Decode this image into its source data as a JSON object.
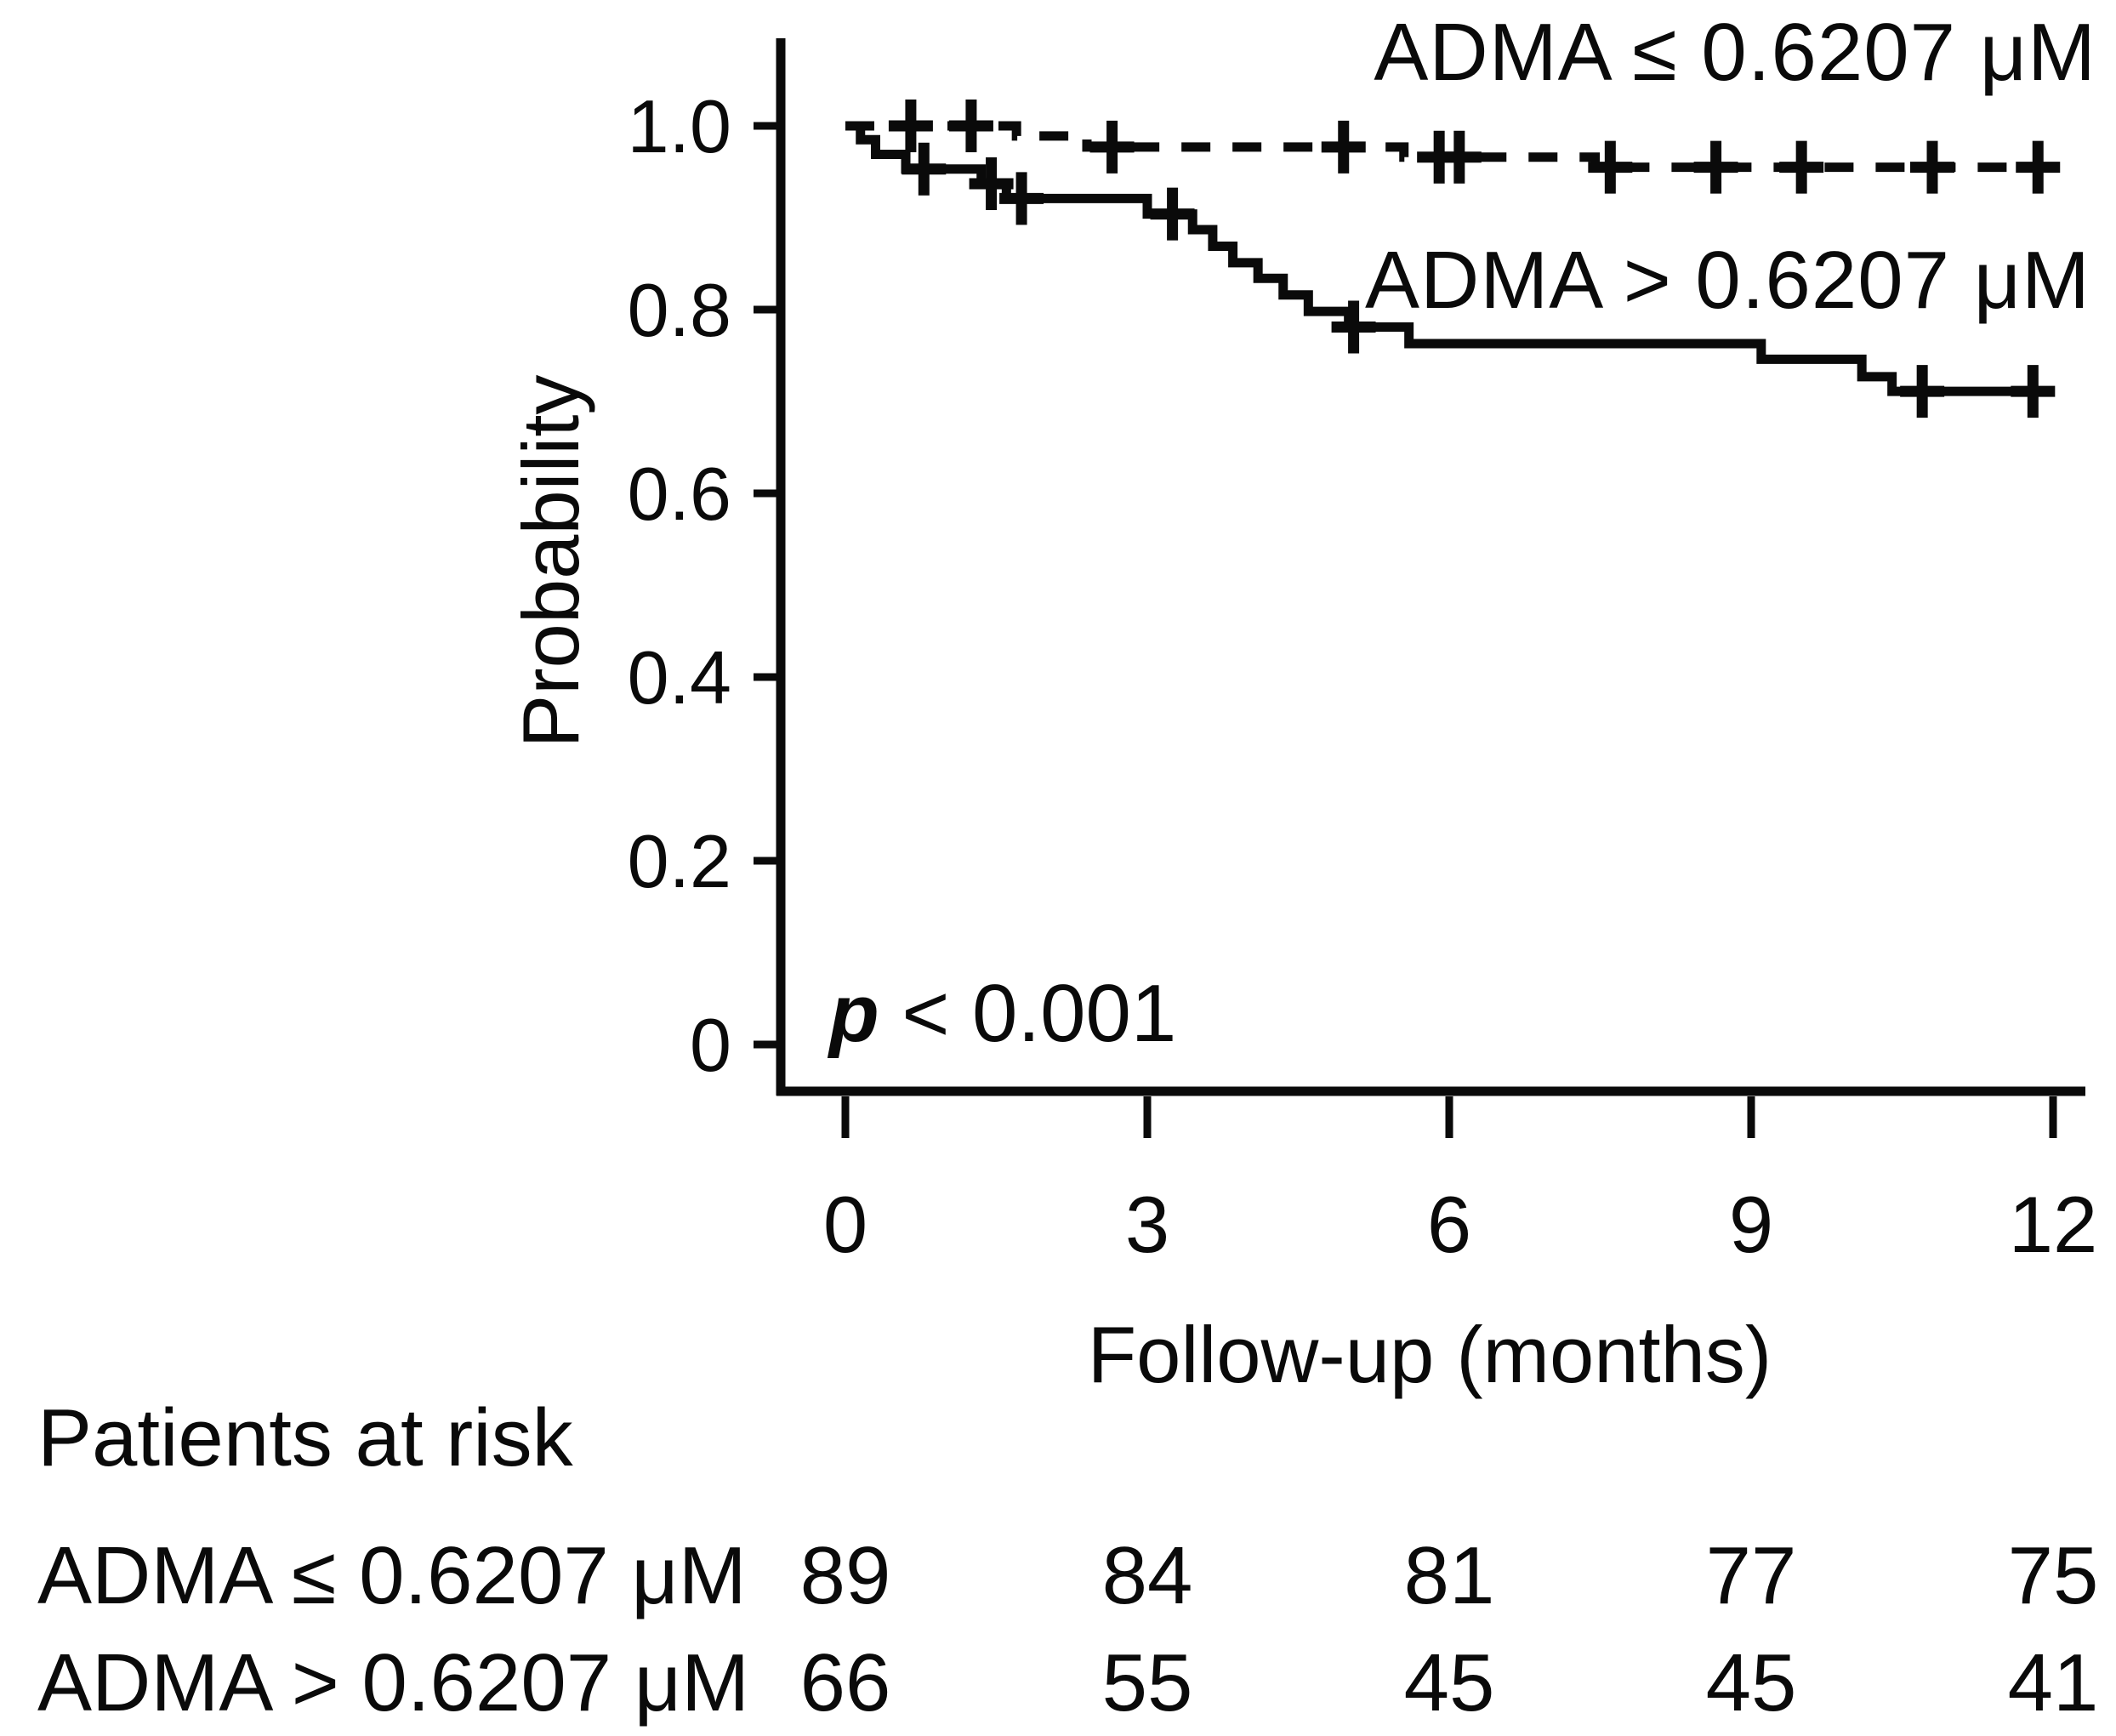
{
  "figure": {
    "p_value_symbol": "p",
    "p_value_rest": " < 0.001"
  },
  "chart_data": {
    "type": "line",
    "subtype": "kaplan-meier-step",
    "title": "",
    "xlabel": "Follow-up (months)",
    "ylabel": "Probability",
    "xlim": [
      0,
      12
    ],
    "ylim": [
      0,
      1.05
    ],
    "grid": false,
    "legend_position": "inline-right",
    "annotation": "p < 0.001",
    "x_ticks": [
      0,
      3,
      6,
      9,
      12
    ],
    "y_tick_labels": [
      "1.0",
      "0.8",
      "0.6",
      "0.4",
      "0.2",
      "0"
    ],
    "y_tick_values": [
      1.0,
      0.8,
      0.6,
      0.4,
      0.2,
      0
    ],
    "series": [
      {
        "name": "ADMA > 0.6207 μM",
        "style": "solid",
        "color": "#0a0a0a",
        "steps": [
          [
            0,
            1.0
          ],
          [
            0.15,
            0.985
          ],
          [
            0.3,
            0.969
          ],
          [
            0.6,
            0.953
          ],
          [
            1.35,
            0.937
          ],
          [
            1.6,
            0.921
          ],
          [
            3.0,
            0.904
          ],
          [
            3.45,
            0.887
          ],
          [
            3.65,
            0.869
          ],
          [
            3.85,
            0.851
          ],
          [
            4.1,
            0.834
          ],
          [
            4.35,
            0.816
          ],
          [
            4.6,
            0.798
          ],
          [
            5.0,
            0.781
          ],
          [
            5.6,
            0.763
          ],
          [
            9.1,
            0.746
          ],
          [
            10.1,
            0.727
          ],
          [
            10.4,
            0.711
          ],
          [
            12,
            0.711
          ]
        ],
        "censor_marks": [
          [
            0.78,
            0.953
          ],
          [
            1.45,
            0.937
          ],
          [
            1.75,
            0.921
          ],
          [
            3.25,
            0.904
          ],
          [
            5.05,
            0.781
          ],
          [
            10.7,
            0.711
          ],
          [
            11.8,
            0.711
          ]
        ]
      },
      {
        "name": "ADMA ≤ 0.6207 μM",
        "style": "dashed",
        "color": "#0a0a0a",
        "steps": [
          [
            0,
            1.0
          ],
          [
            1.7,
            0.989
          ],
          [
            2.4,
            0.977
          ],
          [
            5.55,
            0.966
          ],
          [
            7.45,
            0.955
          ],
          [
            12,
            0.955
          ]
        ],
        "censor_marks": [
          [
            0.65,
            1.0
          ],
          [
            1.25,
            1.0
          ],
          [
            2.65,
            0.977
          ],
          [
            4.95,
            0.977
          ],
          [
            5.9,
            0.966
          ],
          [
            6.1,
            0.966
          ],
          [
            7.6,
            0.955
          ],
          [
            8.65,
            0.955
          ],
          [
            9.5,
            0.955
          ],
          [
            10.8,
            0.955
          ],
          [
            11.85,
            0.955
          ]
        ]
      }
    ],
    "risk_table": {
      "title": "Patients at risk",
      "columns": [
        0,
        3,
        6,
        9,
        12
      ],
      "rows": [
        {
          "label": "ADMA ≤ 0.6207 μM",
          "values": [
            "89",
            "84",
            "81",
            "77",
            "75"
          ]
        },
        {
          "label": "ADMA > 0.6207 μM",
          "values": [
            "66",
            "55",
            "45",
            "45",
            "41"
          ]
        }
      ]
    }
  }
}
